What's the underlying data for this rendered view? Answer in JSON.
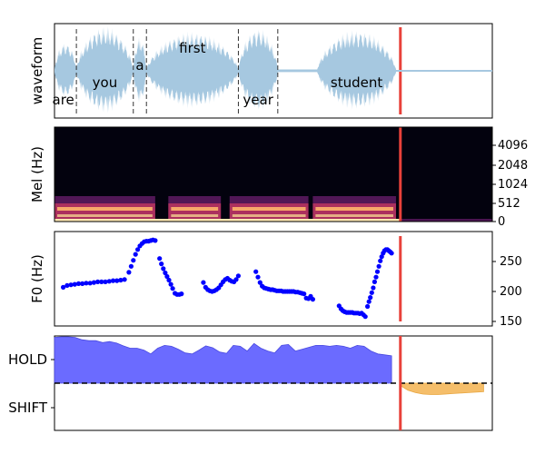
{
  "panels": {
    "waveform": {
      "ylabel": "waveform"
    },
    "mel": {
      "ylabel": "Mel (Hz)",
      "ticks": [
        "4096",
        "2048",
        "1024",
        "512",
        "0"
      ]
    },
    "f0": {
      "ylabel": "F0 (Hz)",
      "ticks": [
        "250",
        "200",
        "150"
      ]
    },
    "turn": {
      "hold_label": "HOLD",
      "shift_label": "SHIFT"
    }
  },
  "chart_data": [
    {
      "type": "area",
      "panel": "waveform",
      "ylabel": "waveform",
      "current_time_marker": 0.79,
      "words": [
        {
          "text": "are",
          "start": 0.05,
          "end": 0.05
        },
        {
          "text": "you",
          "start": 0.05,
          "end": 0.18
        },
        {
          "text": "a",
          "start": 0.18,
          "end": 0.21
        },
        {
          "text": "first",
          "start": 0.21,
          "end": 0.42
        },
        {
          "text": "year",
          "start": 0.42,
          "end": 0.51
        },
        {
          "text": "student",
          "start": 0.6,
          "end": 0.78
        }
      ],
      "word_boundaries": [
        0.05,
        0.18,
        0.21,
        0.42,
        0.51
      ],
      "color_wave": "#a6c8e0",
      "color_marker": "#e8413a"
    },
    {
      "type": "heatmap",
      "panel": "mel",
      "ylabel": "Mel (Hz)",
      "yticks": [
        "4096",
        "2048",
        "1024",
        "512",
        "0"
      ],
      "current_time_marker": 0.79
    },
    {
      "type": "scatter",
      "panel": "f0",
      "ylabel": "F0 (Hz)",
      "yticks": [
        250,
        200,
        150
      ],
      "ylim": [
        145,
        295
      ],
      "current_time_marker": 0.79,
      "color": "#0000ff",
      "segments": [
        {
          "t_start": 0.02,
          "t_end": 0.16,
          "values": [
            207,
            210,
            211,
            212,
            213,
            213,
            214,
            214,
            215,
            216,
            216,
            216,
            217,
            218,
            218,
            219,
            220
          ]
        },
        {
          "t_start": 0.17,
          "t_end": 0.23,
          "values": [
            232,
            242,
            252,
            262,
            270,
            276,
            280,
            283,
            284,
            284,
            285,
            286,
            285
          ]
        },
        {
          "t_start": 0.24,
          "t_end": 0.27,
          "values": [
            255,
            246,
            238,
            231,
            225,
            219,
            212,
            205
          ]
        },
        {
          "t_start": 0.275,
          "t_end": 0.29,
          "values": [
            197,
            195,
            195,
            196
          ]
        },
        {
          "t_start": 0.34,
          "t_end": 0.42,
          "values": [
            215,
            207,
            203,
            201,
            200,
            201,
            203,
            206,
            211,
            216,
            220,
            222,
            219,
            217,
            216,
            220,
            226
          ]
        },
        {
          "t_start": 0.46,
          "t_end": 0.57,
          "values": [
            233,
            224,
            215,
            209,
            206,
            205,
            204,
            203,
            203,
            202,
            201,
            201,
            201,
            200,
            200,
            200,
            200,
            200,
            200,
            199,
            199,
            198,
            197,
            196
          ]
        },
        {
          "t_start": 0.575,
          "t_end": 0.59,
          "values": [
            189,
            188,
            192,
            187
          ]
        },
        {
          "t_start": 0.65,
          "t_end": 0.71,
          "values": [
            176,
            171,
            168,
            166,
            165,
            165,
            165,
            165,
            164,
            164,
            164,
            163,
            164,
            161,
            158
          ]
        },
        {
          "t_start": 0.715,
          "t_end": 0.77,
          "values": [
            175,
            183,
            190,
            198,
            206,
            216,
            224,
            233,
            242,
            251,
            258,
            264,
            268,
            270,
            270,
            268,
            266,
            264
          ]
        }
      ]
    },
    {
      "type": "area",
      "panel": "turn",
      "yticks": [
        "HOLD",
        "SHIFT"
      ],
      "current_time_marker": 0.79,
      "baseline_style": "dashed",
      "hold_color": "#6b6bff",
      "shift_color": "#f5be6a",
      "hold_series": [
        0.97,
        0.98,
        0.98,
        0.97,
        0.92,
        0.9,
        0.9,
        0.86,
        0.88,
        0.85,
        0.79,
        0.74,
        0.74,
        0.7,
        0.62,
        0.74,
        0.8,
        0.78,
        0.72,
        0.64,
        0.62,
        0.7,
        0.79,
        0.75,
        0.66,
        0.63,
        0.8,
        0.78,
        0.68,
        0.84,
        0.74,
        0.68,
        0.64,
        0.8,
        0.82,
        0.68,
        0.72,
        0.76,
        0.8,
        0.8,
        0.78,
        0.8,
        0.78,
        0.74,
        0.8,
        0.78,
        0.68,
        0.62,
        0.6,
        0.58
      ],
      "shift_series": [
        0.05,
        0.15,
        0.2,
        0.23,
        0.24,
        0.24,
        0.23,
        0.22,
        0.21,
        0.2,
        0.19,
        0.18
      ]
    }
  ]
}
